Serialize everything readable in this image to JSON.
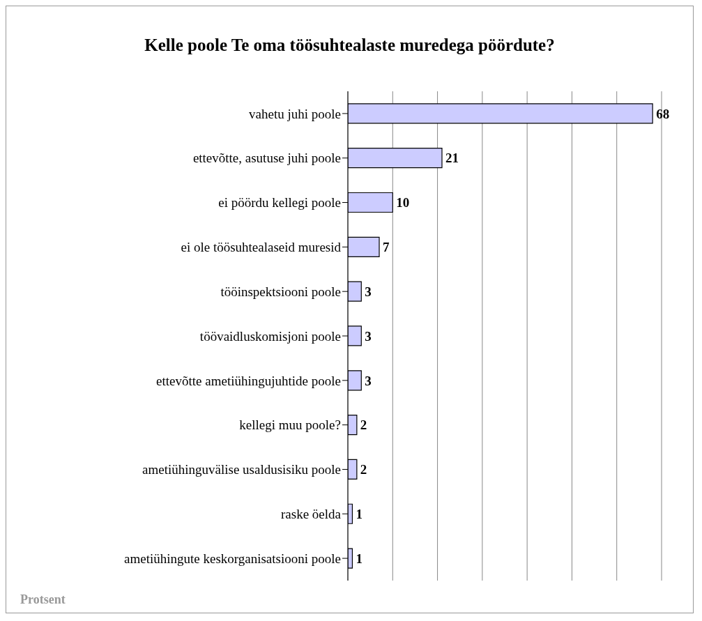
{
  "chart_data": {
    "type": "bar",
    "orientation": "horizontal",
    "title": "Kelle poole Te oma töösuhtealaste muredega pöördute?",
    "categories": [
      "vahetu juhi poole",
      "ettevõtte, asutuse juhi poole",
      "ei pöördu kellegi poole",
      "ei ole töösuhtealaseid muresid",
      "tööinspektsiooni poole",
      "töövaidluskomisjoni poole",
      "ettevõtte ametiühingujuhtide poole",
      "kellegi muu poole?",
      "ametiühinguvälise usaldusisiku poole",
      "raske öelda",
      "ametiühingute keskorganisatsiooni poole"
    ],
    "values": [
      68,
      21,
      10,
      7,
      3,
      3,
      3,
      2,
      2,
      1,
      1
    ],
    "color": "#ccccff",
    "tick_labels": "y",
    "grid": "x",
    "data_labels": true,
    "annotations": [
      "Protsent"
    ]
  }
}
